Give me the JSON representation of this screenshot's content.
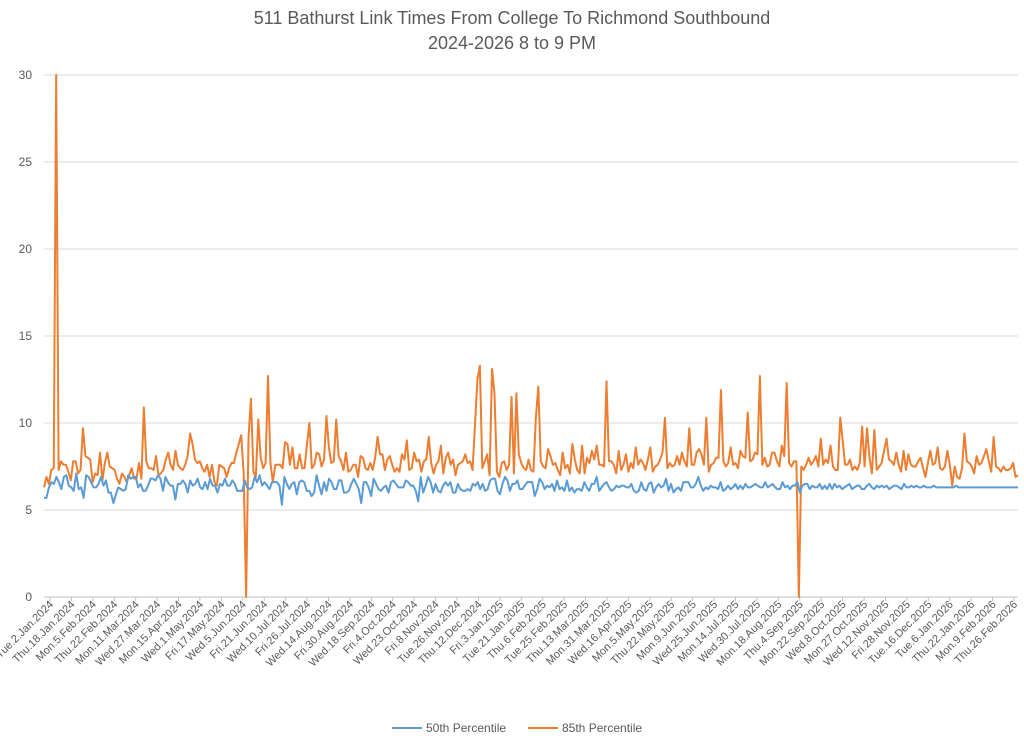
{
  "chart_data": {
    "type": "line",
    "title_line_1": "511 Bathurst Link Times From College To Richmond Southbound",
    "title_line_2": "2024-2026 8 to 9 PM",
    "xlabel": "",
    "ylabel": "",
    "ylim": [
      0,
      30
    ],
    "y_ticks": [
      0,
      5,
      10,
      15,
      20,
      25,
      30
    ],
    "grid": "horizontal",
    "legend_position": "bottom",
    "x_tick_labels": [
      "Tue.2.Jan.2024",
      "Thu.18.Jan.2024",
      "Mon.5.Feb.2024",
      "Thu.22.Feb.2024",
      "Mon.11.Mar.2024",
      "Wed.27.Mar.2024",
      "Mon.15.Apr.2024",
      "Wed.1.May.2024",
      "Fri.17.May.2024",
      "Wed.5.Jun.2024",
      "Fri.21.Jun.2024",
      "Wed.10.Jul.2024",
      "Fri.26.Jul.2024",
      "Wed.14.Aug.2024",
      "Fri.30.Aug.2024",
      "Wed.18.Sep.2024",
      "Fri.4.Oct.2024",
      "Wed.23.Oct.2024",
      "Fri.8.Nov.2024",
      "Tue.26.Nov.2024",
      "Thu.12.Dec.2024",
      "Fri.3.Jan.2025",
      "Tue.21.Jan.2025",
      "Thu.6.Feb.2025",
      "Tue.25.Feb.2025",
      "Thu.13.Mar.2025",
      "Mon.31.Mar.2025",
      "Wed.16.Apr.2025",
      "Mon.5.May.2025",
      "Thu.22.May.2025",
      "Mon.9.Jun.2025",
      "Wed.25.Jun.2025",
      "Mon.14.Jul.2025",
      "Wed.30.Jul.2025",
      "Mon.18.Aug.2025",
      "Thu.4.Sep.2025",
      "Mon.22.Sep.2025",
      "Wed.8.Oct.2025",
      "Mon.27.Oct.2025",
      "Wed.12.Nov.2025",
      "Fri.28.Nov.2025",
      "Tue.16.Dec.2025",
      "Tue.6.Jan.2026",
      "Thu.22.Jan.2026",
      "Mon.9.Feb.2026",
      "Thu.26.Feb.2026"
    ],
    "series": [
      {
        "name": "50th Percentile",
        "color": "#5B9BD5",
        "values": [
          5.7,
          5.7,
          6.3,
          6.6,
          6.5,
          6.9,
          6.6,
          6.2,
          6.9,
          7.0,
          6.4,
          6.3,
          6.1,
          7.1,
          6.2,
          6.3,
          5.7,
          7.0,
          6.9,
          6.6,
          6.3,
          6.3,
          6.5,
          6.9,
          6.4,
          6.7,
          6.0,
          6.0,
          5.4,
          5.9,
          6.3,
          6.2,
          6.1,
          6.2,
          7.0,
          6.8,
          6.9,
          6.9,
          6.3,
          6.5,
          6.1,
          6.1,
          6.4,
          6.8,
          6.8,
          6.7,
          7.0,
          6.8,
          6.1,
          6.9,
          6.6,
          6.4,
          6.4,
          5.6,
          6.5,
          6.5,
          6.7,
          6.5,
          6.0,
          6.7,
          6.4,
          6.5,
          6.8,
          6.3,
          6.2,
          6.6,
          6.2,
          6.8,
          6.4,
          6.4,
          6.0,
          6.5,
          6.4,
          6.8,
          6.4,
          6.4,
          6.7,
          6.5,
          6.1,
          6.1,
          6.1,
          6.7,
          6.3,
          6.2,
          6.3,
          6.9,
          6.6,
          7.0,
          6.4,
          6.6,
          6.4,
          6.2,
          6.6,
          6.6,
          6.6,
          6.4,
          5.3,
          6.9,
          6.5,
          6.2,
          6.5,
          6.6,
          5.9,
          6.6,
          6.7,
          6.6,
          6.1,
          6.1,
          5.8,
          6.0,
          7.0,
          6.4,
          5.9,
          6.6,
          6.1,
          6.8,
          6.6,
          6.2,
          6.2,
          6.7,
          6.7,
          6.0,
          6.0,
          6.1,
          6.5,
          6.8,
          6.5,
          6.2,
          5.4,
          6.6,
          6.6,
          6.3,
          5.8,
          6.8,
          6.5,
          6.2,
          6.1,
          6.3,
          6.4,
          6.0,
          6.6,
          6.7,
          6.5,
          6.3,
          6.3,
          6.3,
          6.7,
          6.6,
          6.4,
          6.4,
          6.1,
          5.5,
          6.9,
          6.0,
          6.4,
          6.9,
          6.6,
          6.0,
          6.5,
          6.1,
          6.0,
          6.4,
          6.6,
          6.4,
          6.6,
          6.0,
          6.0,
          6.5,
          6.2,
          6.1,
          6.1,
          6.2,
          6.1,
          6.5,
          6.4,
          6.6,
          6.2,
          6.5,
          6.1,
          6.2,
          6.7,
          6.8,
          6.8,
          6.1,
          5.9,
          6.5,
          6.9,
          6.7,
          6.1,
          6.5,
          6.5,
          6.7,
          6.2,
          6.2,
          6.4,
          6.6,
          6.6,
          6.6,
          5.8,
          6.2,
          6.8,
          6.6,
          6.2,
          6.4,
          6.3,
          6.5,
          6.1,
          6.7,
          6.2,
          6.3,
          6.1,
          6.7,
          6.1,
          6.3,
          6.0,
          6.2,
          6.2,
          6.1,
          6.6,
          6.3,
          6.1,
          6.5,
          6.5,
          6.9,
          6.1,
          6.3,
          6.5,
          6.6,
          6.3,
          6.1,
          6.2,
          6.4,
          6.3,
          6.4,
          6.4,
          6.3,
          6.3,
          6.5,
          6.1,
          6.0,
          6.1,
          6.6,
          6.2,
          6.1,
          6.5,
          6.6,
          6.0,
          6.3,
          6.5,
          6.3,
          6.4,
          6.8,
          6.1,
          6.5,
          6.0,
          6.2,
          6.3,
          6.1,
          6.6,
          6.6,
          6.6,
          6.3,
          6.3,
          6.5,
          6.9,
          6.4,
          6.1,
          6.3,
          6.2,
          6.4,
          6.3,
          6.3,
          6.2,
          6.6,
          6.1,
          6.2,
          6.4,
          6.2,
          6.3,
          6.5,
          6.2,
          6.4,
          6.2,
          6.5,
          6.3,
          6.3,
          6.4,
          6.5,
          6.4,
          6.3,
          6.3,
          6.6,
          6.3,
          6.4,
          6.5,
          6.3,
          6.2,
          6.2,
          6.6,
          6.3,
          6.4,
          6.2,
          6.4,
          6.4,
          6.6,
          6.0,
          6.4,
          6.5,
          6.5,
          6.2,
          6.4,
          6.3,
          6.3,
          6.5,
          6.2,
          6.4,
          6.2,
          6.5,
          6.2,
          6.5,
          6.3,
          6.4,
          6.2,
          6.3,
          6.4,
          6.5,
          6.2,
          6.3,
          6.4,
          6.4,
          6.2,
          6.2,
          6.4,
          6.5,
          6.3,
          6.2,
          6.4,
          6.3,
          6.4,
          6.3,
          6.4,
          6.2,
          6.3,
          6.4,
          6.4,
          6.3,
          6.2,
          6.5,
          6.3,
          6.3,
          6.4,
          6.3,
          6.4,
          6.3,
          6.3,
          6.4,
          6.3,
          6.3,
          6.3,
          6.4,
          6.3,
          6.3,
          6.3,
          6.3,
          6.3,
          6.3,
          6.3,
          6.3,
          6.4,
          6.3,
          6.3,
          6.3,
          6.3,
          6.3,
          6.3,
          6.3,
          6.3,
          6.3,
          6.3,
          6.3,
          6.3,
          6.3,
          6.3,
          6.3,
          6.3,
          6.3,
          6.3,
          6.3,
          6.3,
          6.3,
          6.3,
          6.3,
          6.3,
          6.3
        ]
      },
      {
        "name": "85th Percentile",
        "color": "#ED7D31",
        "values": [
          6.3,
          6.9,
          6.5,
          7.3,
          7.4,
          30.0,
          7.3,
          7.8,
          7.6,
          7.6,
          7.2,
          6.7,
          7.8,
          7.8,
          7.1,
          7.3,
          9.7,
          8.1,
          8.0,
          7.9,
          6.6,
          7.1,
          7.0,
          8.3,
          6.7,
          7.7,
          8.3,
          7.5,
          7.4,
          7.3,
          6.8,
          6.5,
          7.1,
          6.9,
          6.6,
          7.0,
          7.4,
          6.8,
          6.8,
          7.7,
          6.8,
          10.9,
          7.8,
          7.4,
          7.4,
          7.3,
          8.1,
          7.0,
          7.1,
          7.3,
          7.9,
          8.3,
          7.6,
          7.3,
          8.4,
          7.6,
          7.4,
          7.3,
          7.6,
          8.1,
          9.4,
          8.8,
          7.9,
          7.7,
          7.8,
          7.4,
          7.2,
          7.6,
          6.9,
          7.6,
          6.6,
          6.4,
          7.6,
          7.5,
          7.4,
          6.9,
          7.4,
          7.7,
          7.7,
          8.3,
          8.8,
          9.3,
          7.1,
          0.0,
          9.2,
          11.4,
          7.2,
          6.9,
          10.2,
          8.0,
          7.4,
          7.7,
          12.7,
          7.7,
          6.6,
          7.6,
          7.6,
          7.6,
          7.4,
          8.9,
          8.8,
          7.6,
          8.6,
          7.4,
          7.4,
          8.2,
          7.4,
          7.4,
          8.8,
          10.0,
          7.4,
          7.6,
          8.3,
          8.2,
          7.5,
          7.9,
          10.4,
          8.6,
          7.7,
          7.8,
          10.2,
          8.1,
          7.8,
          7.3,
          8.3,
          7.2,
          7.3,
          7.6,
          7.6,
          6.9,
          8.1,
          8.0,
          7.4,
          7.3,
          7.7,
          7.3,
          8.0,
          9.2,
          8.2,
          8.2,
          7.3,
          7.9,
          8.1,
          7.6,
          7.2,
          7.4,
          7.2,
          8.2,
          7.9,
          9.0,
          7.3,
          7.4,
          8.3,
          7.8,
          7.9,
          7.2,
          7.8,
          7.9,
          9.2,
          7.7,
          7.1,
          7.6,
          7.8,
          8.7,
          7.1,
          8.0,
          8.3,
          7.6,
          7.9,
          7.0,
          7.6,
          7.7,
          7.8,
          8.2,
          7.7,
          7.8,
          7.3,
          9.9,
          12.5,
          13.3,
          7.4,
          7.8,
          8.2,
          7.0,
          13.1,
          11.7,
          7.2,
          6.9,
          7.7,
          7.8,
          7.3,
          7.6,
          11.5,
          7.1,
          11.7,
          8.2,
          7.7,
          7.4,
          7.3,
          7.9,
          7.3,
          7.2,
          10.3,
          12.1,
          7.8,
          7.5,
          7.4,
          8.5,
          8.1,
          7.6,
          7.7,
          7.3,
          7.0,
          8.3,
          7.4,
          7.6,
          7.1,
          8.8,
          7.9,
          7.3,
          7.1,
          8.7,
          7.1,
          8.0,
          7.7,
          8.4,
          7.9,
          8.7,
          7.6,
          7.6,
          7.5,
          12.4,
          7.8,
          7.8,
          7.6,
          7.1,
          8.4,
          7.3,
          7.6,
          8.2,
          7.2,
          7.7,
          7.4,
          8.6,
          7.6,
          7.9,
          7.7,
          7.3,
          7.9,
          8.6,
          7.2,
          7.5,
          7.6,
          7.9,
          8.3,
          10.3,
          7.4,
          7.7,
          7.5,
          7.6,
          8.1,
          7.6,
          8.3,
          7.8,
          7.5,
          9.7,
          7.6,
          7.6,
          8.3,
          8.5,
          8.2,
          7.6,
          10.3,
          7.2,
          7.6,
          7.7,
          8.0,
          8.0,
          11.9,
          7.8,
          7.5,
          7.7,
          8.6,
          7.6,
          7.7,
          7.4,
          8.4,
          8.1,
          8.0,
          10.6,
          7.8,
          7.9,
          8.3,
          8.2,
          12.7,
          7.6,
          8.0,
          7.5,
          7.6,
          8.3,
          8.3,
          7.8,
          7.5,
          8.7,
          8.1,
          12.3,
          7.7,
          7.5,
          7.8,
          7.8,
          0.0,
          7.5,
          7.3,
          7.6,
          8.0,
          7.6,
          7.8,
          8.1,
          7.5,
          9.1,
          7.6,
          7.9,
          7.7,
          8.7,
          7.5,
          7.3,
          7.3,
          10.3,
          9.0,
          7.6,
          7.6,
          7.9,
          7.3,
          7.5,
          7.3,
          7.7,
          9.8,
          7.5,
          9.7,
          8.0,
          7.1,
          9.6,
          7.3,
          7.5,
          7.7,
          8.4,
          9.1,
          7.9,
          7.8,
          7.6,
          8.3,
          7.6,
          7.2,
          8.4,
          7.3,
          8.2,
          7.6,
          7.5,
          7.5,
          7.8,
          8.0,
          7.4,
          6.9,
          7.7,
          8.4,
          7.6,
          7.7,
          8.6,
          7.4,
          7.3,
          7.5,
          8.4,
          7.6,
          6.4,
          7.5,
          6.9,
          6.8,
          7.4,
          9.4,
          7.8,
          7.7,
          7.5,
          7.1,
          8.1,
          7.6,
          7.7,
          8.1,
          8.5,
          7.8,
          7.2,
          9.2,
          7.5,
          7.4,
          7.2,
          7.5,
          7.3,
          7.3,
          7.4,
          7.7,
          6.9,
          7.0
        ]
      }
    ]
  }
}
